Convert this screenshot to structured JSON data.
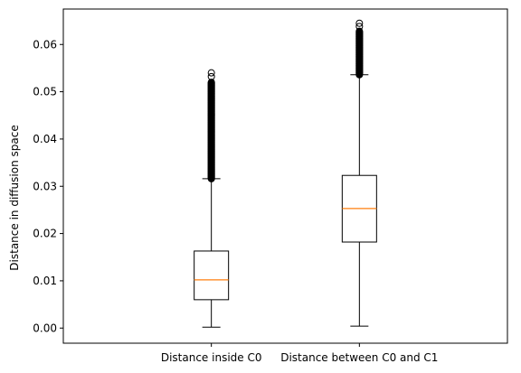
{
  "chart_data": {
    "type": "box",
    "title": "",
    "xlabel": "",
    "ylabel": "Distance in diffusion space",
    "ylim": [
      -0.0032,
      0.0675
    ],
    "yticks": [
      0.0,
      0.01,
      0.02,
      0.03,
      0.04,
      0.05,
      0.06
    ],
    "ytick_labels": [
      "0.00",
      "0.01",
      "0.02",
      "0.03",
      "0.04",
      "0.05",
      "0.06"
    ],
    "categories": [
      "Distance inside C0",
      "Distance between C0 and C1"
    ],
    "boxes": [
      {
        "whisker_low": 0.0002,
        "q1": 0.006,
        "median": 0.0102,
        "q3": 0.0163,
        "whisker_high": 0.0316,
        "outliers_range": [
          0.0316,
          0.052
        ],
        "outliers_extra": [
          0.0532,
          0.054
        ]
      },
      {
        "whisker_low": 0.0004,
        "q1": 0.0182,
        "median": 0.0253,
        "q3": 0.0323,
        "whisker_high": 0.0536,
        "outliers_range": [
          0.0536,
          0.0628
        ],
        "outliers_extra": [
          0.0638,
          0.0645
        ]
      }
    ],
    "grid": false,
    "colors": {
      "box": "#000000",
      "median": "#ff7f0e"
    }
  }
}
